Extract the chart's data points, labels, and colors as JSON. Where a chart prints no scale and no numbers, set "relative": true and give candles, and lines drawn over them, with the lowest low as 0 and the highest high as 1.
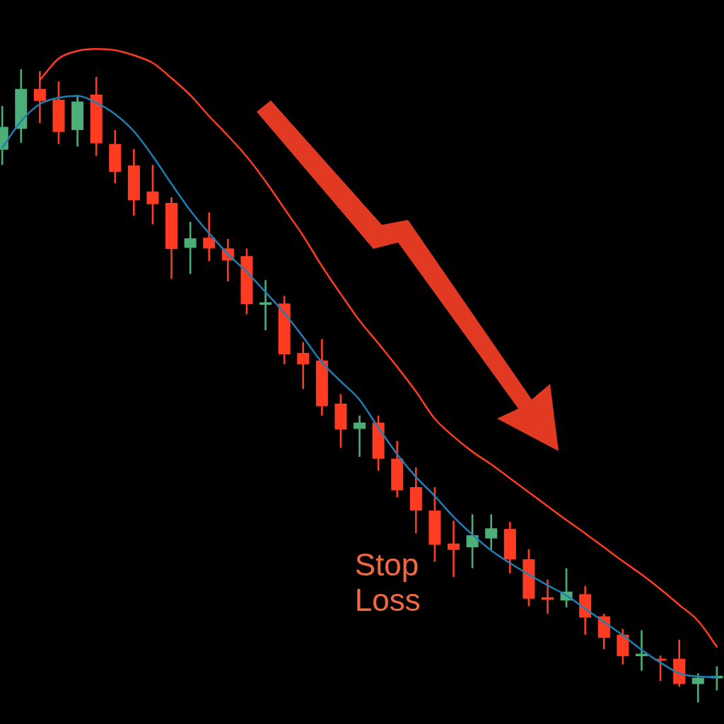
{
  "chart_data": {
    "type": "candlestick",
    "relative": true,
    "categories": [
      null,
      null,
      null,
      null,
      null,
      null,
      null,
      null,
      null,
      null,
      null,
      null,
      null,
      null,
      null,
      null,
      null,
      null,
      null,
      null,
      null,
      null,
      null,
      null,
      null,
      null,
      null,
      null,
      null,
      null,
      null,
      null,
      null,
      null,
      null,
      null,
      null,
      null,
      null
    ],
    "ohlc": [
      [
        0.873,
        0.942,
        0.849,
        0.909
      ],
      [
        0.906,
        1,
        0.884,
        0.969
      ],
      [
        0.969,
        0.997,
        0.915,
        0.95
      ],
      [
        0.952,
        0.981,
        0.882,
        0.901
      ],
      [
        0.904,
        0.959,
        0.878,
        0.949
      ],
      [
        0.96,
        0.988,
        0.863,
        0.883
      ],
      [
        0.882,
        0.904,
        0.82,
        0.838
      ],
      [
        0.848,
        0.874,
        0.769,
        0.793
      ],
      [
        0.807,
        0.849,
        0.755,
        0.787
      ],
      [
        0.789,
        0.798,
        0.669,
        0.716
      ],
      [
        0.718,
        0.759,
        0.677,
        0.733
      ],
      [
        0.734,
        0.774,
        0.697,
        0.717
      ],
      [
        0.717,
        0.732,
        0.665,
        0.698
      ],
      [
        0.705,
        0.717,
        0.613,
        0.629
      ],
      [
        0.628,
        0.667,
        0.588,
        0.632
      ],
      [
        0.63,
        0.642,
        0.534,
        0.55
      ],
      [
        0.552,
        0.569,
        0.495,
        0.534
      ],
      [
        0.54,
        0.574,
        0.453,
        0.468
      ],
      [
        0.472,
        0.487,
        0.402,
        0.431
      ],
      [
        0.432,
        0.453,
        0.388,
        0.442
      ],
      [
        0.442,
        0.453,
        0.366,
        0.385
      ],
      [
        0.385,
        0.413,
        0.324,
        0.335
      ],
      [
        0.34,
        0.371,
        0.267,
        0.303
      ],
      [
        0.303,
        0.34,
        0.222,
        0.249
      ],
      [
        0.251,
        0.287,
        0.198,
        0.241
      ],
      [
        0.245,
        0.297,
        0.212,
        0.264
      ],
      [
        0.259,
        0.297,
        0.241,
        0.275
      ],
      [
        0.274,
        0.285,
        0.204,
        0.226
      ],
      [
        0.226,
        0.242,
        0.152,
        0.164
      ],
      [
        0.166,
        0.194,
        0.14,
        0.162
      ],
      [
        0.161,
        0.212,
        0.15,
        0.175
      ],
      [
        0.171,
        0.184,
        0.107,
        0.134
      ],
      [
        0.136,
        0.14,
        0.084,
        0.102
      ],
      [
        0.107,
        0.116,
        0.06,
        0.073
      ],
      [
        0.073,
        0.114,
        0.05,
        0.077
      ],
      [
        0.069,
        0.074,
        0.034,
        0.066
      ],
      [
        0.069,
        0.099,
        0.025,
        0.029
      ],
      [
        0.029,
        0.046,
        0,
        0.039
      ],
      [
        0.038,
        0.057,
        0.019,
        0.042
      ]
    ],
    "colors": [
      "#4caf78",
      "#4caf78",
      "#ff3b22",
      "#ff3b22",
      "#4caf78",
      "#ff3b22",
      "#ff3b22",
      "#ff3b22",
      "#ff3b22",
      "#ff3b22",
      "#4caf78",
      "#ff3b22",
      "#ff3b22",
      "#ff3b22",
      "#4caf78",
      "#ff3b22",
      "#ff3b22",
      "#ff3b22",
      "#ff3b22",
      "#4caf78",
      "#ff3b22",
      "#ff3b22",
      "#ff3b22",
      "#ff3b22",
      "#ff3b22",
      "#4caf78",
      "#4caf78",
      "#ff3b22",
      "#ff3b22",
      "#ff3b22",
      "#4caf78",
      "#ff3b22",
      "#ff3b22",
      "#ff3b22",
      "#4caf78",
      "#ff3b22",
      "#ff3b22",
      "#4caf78",
      "#4caf78"
    ],
    "series": [
      {
        "type": "line",
        "color": "#1f7fb5",
        "values": [
          0.876,
          0.918,
          0.945,
          0.955,
          0.958,
          0.947,
          0.929,
          0.902,
          0.863,
          0.819,
          0.777,
          0.741,
          0.708,
          0.68,
          0.648,
          0.615,
          0.577,
          0.537,
          0.507,
          0.478,
          0.434,
          0.392,
          0.356,
          0.326,
          0.293,
          0.265,
          0.24,
          0.22,
          0.202,
          0.185,
          0.169,
          0.148,
          0.127,
          0.106,
          0.083,
          0.063,
          0.046,
          0.041,
          0.04
        ]
      },
      {
        "type": "line",
        "color": "#ff3b22",
        "values": [
          null,
          null,
          0.983,
          1.017,
          1.029,
          1.032,
          1.03,
          1.022,
          1.01,
          0.986,
          0.959,
          0.926,
          0.895,
          0.862,
          0.823,
          0.78,
          0.737,
          0.689,
          0.645,
          0.603,
          0.567,
          0.53,
          0.491,
          0.448,
          0.42,
          0.396,
          0.376,
          0.354,
          0.332,
          0.31,
          0.288,
          0.267,
          0.245,
          0.223,
          0.202,
          0.179,
          0.154,
          0.129,
          0.088
        ]
      }
    ],
    "annotations": [
      "Stop Loss"
    ]
  }
}
